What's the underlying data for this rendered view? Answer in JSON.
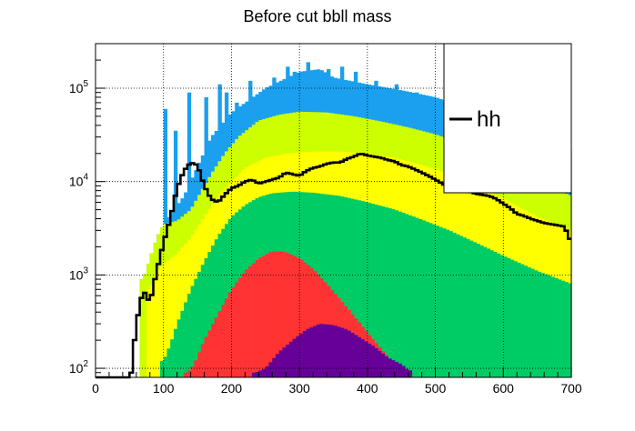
{
  "chart_data": {
    "type": "area",
    "title": "Before cut bbll mass",
    "xlabel": "",
    "ylabel": "",
    "xlim": [
      0,
      700
    ],
    "ylim": [
      80,
      300000
    ],
    "yscale": "log",
    "grid": true,
    "x_ticks": [
      0,
      100,
      200,
      300,
      400,
      500,
      600,
      700
    ],
    "y_ticks": [
      {
        "value": 100,
        "base": "10",
        "exp": "2"
      },
      {
        "value": 1000,
        "base": "10",
        "exp": "3"
      },
      {
        "value": 10000,
        "base": "10",
        "exp": "4"
      },
      {
        "value": 100000,
        "base": "10",
        "exp": "5"
      }
    ],
    "legend": {
      "position": "top-right",
      "entries": [
        {
          "label": "hh",
          "color": "#000000"
        }
      ]
    },
    "stacked_series": [
      {
        "color": "#1aa0ee",
        "points": [
          [
            0,
            0
          ],
          [
            60,
            0
          ],
          [
            70,
            900
          ],
          [
            80,
            1500
          ],
          [
            90,
            2500
          ],
          [
            100,
            3500
          ],
          [
            130,
            7000
          ],
          [
            170,
            30000
          ],
          [
            200,
            55000
          ],
          [
            250,
            100000
          ],
          [
            300,
            150000
          ],
          [
            330,
            160000
          ],
          [
            350,
            130000
          ],
          [
            400,
            110000
          ],
          [
            450,
            95000
          ],
          [
            500,
            80000
          ],
          [
            550,
            60000
          ],
          [
            600,
            45000
          ],
          [
            650,
            32000
          ],
          [
            700,
            22000
          ]
        ],
        "spikes": [
          [
            100,
            60000
          ],
          [
            115,
            35000
          ],
          [
            135,
            90000
          ],
          [
            160,
            80000
          ],
          [
            180,
            110000
          ],
          [
            190,
            90000
          ],
          [
            205,
            70000
          ],
          [
            225,
            120000
          ],
          [
            240,
            90000
          ],
          [
            260,
            130000
          ],
          [
            280,
            170000
          ],
          [
            290,
            150000
          ],
          [
            310,
            190000
          ],
          [
            340,
            160000
          ],
          [
            360,
            170000
          ],
          [
            380,
            150000
          ],
          [
            410,
            120000
          ],
          [
            440,
            110000
          ],
          [
            470,
            90000
          ]
        ]
      },
      {
        "color": "#ccff00",
        "points": [
          [
            0,
            0
          ],
          [
            60,
            0
          ],
          [
            70,
            900
          ],
          [
            80,
            1500
          ],
          [
            90,
            2500
          ],
          [
            100,
            3500
          ],
          [
            120,
            3800
          ],
          [
            140,
            5000
          ],
          [
            170,
            12000
          ],
          [
            190,
            20000
          ],
          [
            210,
            30000
          ],
          [
            240,
            45000
          ],
          [
            270,
            52000
          ],
          [
            300,
            56000
          ],
          [
            340,
            55000
          ],
          [
            380,
            50000
          ],
          [
            420,
            44000
          ],
          [
            460,
            38000
          ],
          [
            500,
            32000
          ],
          [
            550,
            24000
          ],
          [
            600,
            16000
          ],
          [
            650,
            10000
          ],
          [
            700,
            7000
          ]
        ]
      },
      {
        "color": "#ffff00",
        "points": [
          [
            0,
            0
          ],
          [
            70,
            0
          ],
          [
            80,
            700
          ],
          [
            90,
            1100
          ],
          [
            100,
            1300
          ],
          [
            120,
            1700
          ],
          [
            140,
            2500
          ],
          [
            160,
            4200
          ],
          [
            180,
            7000
          ],
          [
            200,
            10000
          ],
          [
            220,
            14000
          ],
          [
            250,
            18000
          ],
          [
            280,
            20000
          ],
          [
            320,
            21000
          ],
          [
            360,
            21000
          ],
          [
            400,
            20000
          ],
          [
            440,
            18000
          ],
          [
            480,
            15000
          ],
          [
            520,
            12000
          ],
          [
            560,
            9000
          ],
          [
            600,
            6500
          ],
          [
            650,
            4200
          ],
          [
            700,
            3000
          ]
        ]
      },
      {
        "color": "#00cc66",
        "points": [
          [
            0,
            0
          ],
          [
            95,
            0
          ],
          [
            100,
            120
          ],
          [
            110,
            180
          ],
          [
            120,
            300
          ],
          [
            140,
            700
          ],
          [
            160,
            1400
          ],
          [
            180,
            2600
          ],
          [
            200,
            4200
          ],
          [
            220,
            5600
          ],
          [
            240,
            6800
          ],
          [
            260,
            7500
          ],
          [
            290,
            7800
          ],
          [
            320,
            7600
          ],
          [
            360,
            7000
          ],
          [
            400,
            6000
          ],
          [
            440,
            5000
          ],
          [
            480,
            3900
          ],
          [
            520,
            3000
          ],
          [
            560,
            2200
          ],
          [
            600,
            1600
          ],
          [
            650,
            1100
          ],
          [
            700,
            800
          ]
        ]
      },
      {
        "color": "#ff3333",
        "points": [
          [
            0,
            0
          ],
          [
            125,
            0
          ],
          [
            135,
            90
          ],
          [
            145,
            110
          ],
          [
            160,
            200
          ],
          [
            180,
            380
          ],
          [
            200,
            700
          ],
          [
            220,
            1100
          ],
          [
            240,
            1500
          ],
          [
            260,
            1800
          ],
          [
            280,
            1750
          ],
          [
            300,
            1500
          ],
          [
            320,
            1150
          ],
          [
            340,
            800
          ],
          [
            360,
            540
          ],
          [
            380,
            360
          ],
          [
            400,
            240
          ],
          [
            420,
            160
          ],
          [
            440,
            110
          ],
          [
            460,
            90
          ],
          [
            470,
            0
          ],
          [
            700,
            0
          ]
        ]
      },
      {
        "color": "#660099",
        "points": [
          [
            0,
            0
          ],
          [
            225,
            0
          ],
          [
            235,
            90
          ],
          [
            250,
            100
          ],
          [
            270,
            150
          ],
          [
            290,
            200
          ],
          [
            310,
            260
          ],
          [
            330,
            300
          ],
          [
            350,
            290
          ],
          [
            370,
            260
          ],
          [
            390,
            210
          ],
          [
            410,
            170
          ],
          [
            430,
            130
          ],
          [
            450,
            110
          ],
          [
            460,
            95
          ],
          [
            470,
            0
          ],
          [
            700,
            0
          ]
        ]
      }
    ],
    "hh_line": {
      "label": "hh",
      "color": "#000000",
      "points": [
        [
          0,
          60
        ],
        [
          50,
          60
        ],
        [
          60,
          300
        ],
        [
          70,
          700
        ],
        [
          80,
          500
        ],
        [
          90,
          1100
        ],
        [
          100,
          2200
        ],
        [
          110,
          4000
        ],
        [
          120,
          8500
        ],
        [
          130,
          13000
        ],
        [
          140,
          16000
        ],
        [
          150,
          15000
        ],
        [
          160,
          9000
        ],
        [
          170,
          6500
        ],
        [
          180,
          6000
        ],
        [
          190,
          7200
        ],
        [
          200,
          8500
        ],
        [
          210,
          9000
        ],
        [
          220,
          10000
        ],
        [
          230,
          10500
        ],
        [
          240,
          9500
        ],
        [
          250,
          10000
        ],
        [
          260,
          10500
        ],
        [
          270,
          11000
        ],
        [
          280,
          12500
        ],
        [
          290,
          12000
        ],
        [
          300,
          11500
        ],
        [
          310,
          13000
        ],
        [
          320,
          14000
        ],
        [
          330,
          14500
        ],
        [
          340,
          15500
        ],
        [
          350,
          16000
        ],
        [
          360,
          16000
        ],
        [
          370,
          17500
        ],
        [
          380,
          18500
        ],
        [
          390,
          20000
        ],
        [
          400,
          19000
        ],
        [
          410,
          18500
        ],
        [
          420,
          18000
        ],
        [
          430,
          17000
        ],
        [
          440,
          16500
        ],
        [
          450,
          15000
        ],
        [
          460,
          14500
        ],
        [
          470,
          13500
        ],
        [
          480,
          12500
        ],
        [
          490,
          11500
        ],
        [
          500,
          10500
        ],
        [
          510,
          9500
        ],
        [
          520,
          8700
        ],
        [
          530,
          8200
        ],
        [
          540,
          8000
        ],
        [
          550,
          7800
        ],
        [
          560,
          7400
        ],
        [
          570,
          7200
        ],
        [
          580,
          7000
        ],
        [
          590,
          6500
        ],
        [
          600,
          5800
        ],
        [
          610,
          5200
        ],
        [
          620,
          4500
        ],
        [
          630,
          4300
        ],
        [
          640,
          4000
        ],
        [
          650,
          3800
        ],
        [
          660,
          3600
        ],
        [
          670,
          3500
        ],
        [
          680,
          3400
        ],
        [
          690,
          3300
        ],
        [
          700,
          2200
        ]
      ]
    }
  }
}
